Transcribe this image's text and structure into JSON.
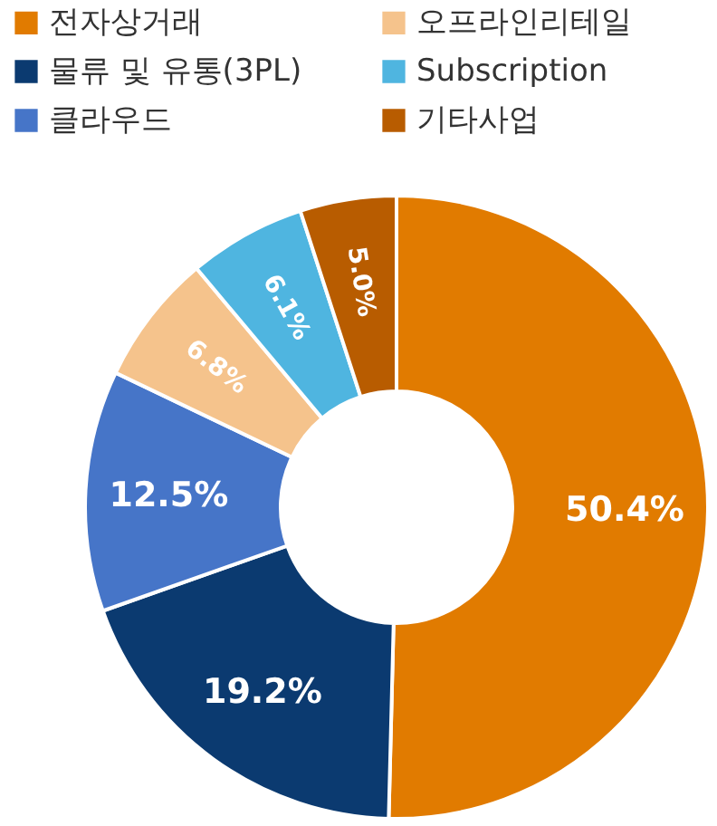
{
  "chart_data": {
    "type": "donut",
    "categories": [
      "전자상거래",
      "물류 및 유통(3PL)",
      "클라우드",
      "오프라인리테일",
      "Subscription",
      "기타사업"
    ],
    "values": [
      50.4,
      19.2,
      12.5,
      6.8,
      6.1,
      5.0
    ],
    "colors": [
      "#e17b00",
      "#0b3a70",
      "#4675c8",
      "#f5c38c",
      "#4fb5e0",
      "#b85c00"
    ],
    "value_labels": [
      "50.4%",
      "19.2%",
      "12.5%",
      "6.8%",
      "6.1%",
      "5.0%"
    ],
    "legend": "top"
  }
}
